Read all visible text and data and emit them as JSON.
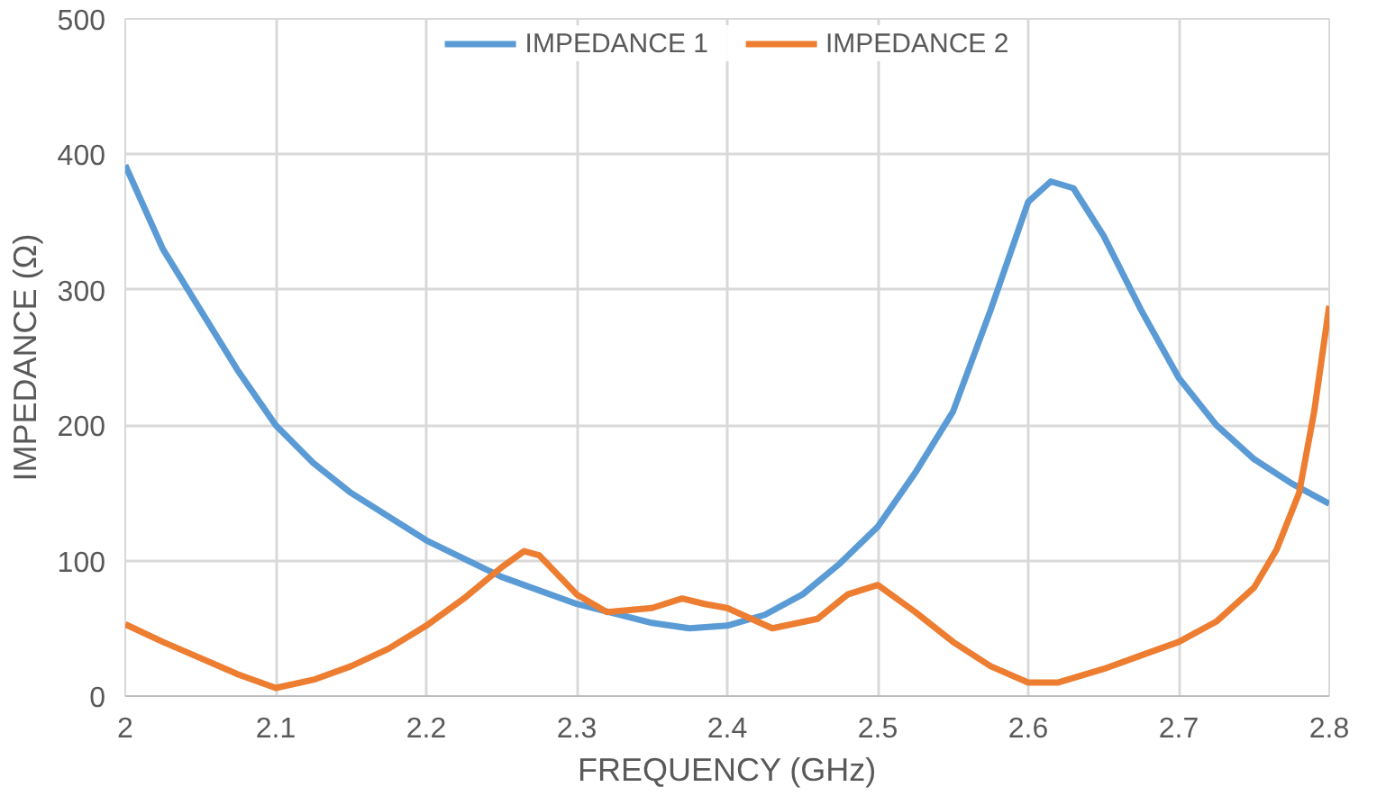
{
  "chart_data": {
    "type": "line",
    "xlabel": "FREQUENCY (GHz)",
    "ylabel": "IMPEDANCE (Ω)",
    "xlim": [
      2,
      2.8
    ],
    "ylim": [
      0,
      500
    ],
    "xticks": [
      2,
      2.1,
      2.2,
      2.3,
      2.4,
      2.5,
      2.6,
      2.7,
      2.8
    ],
    "yticks": [
      0,
      100,
      200,
      300,
      400,
      500
    ],
    "grid": true,
    "legend": "top",
    "marker": "none",
    "line_style": "solid",
    "series": [
      {
        "name": "IMPEDANCE 1",
        "color": "#5b9bd5",
        "x": [
          2.0,
          2.025,
          2.05,
          2.075,
          2.1,
          2.125,
          2.15,
          2.2,
          2.25,
          2.3,
          2.35,
          2.375,
          2.4,
          2.425,
          2.45,
          2.475,
          2.5,
          2.525,
          2.55,
          2.575,
          2.6,
          2.615,
          2.63,
          2.65,
          2.675,
          2.7,
          2.725,
          2.75,
          2.775,
          2.8
        ],
        "values": [
          392,
          330,
          285,
          240,
          200,
          172,
          150,
          115,
          88,
          68,
          54,
          50,
          52,
          60,
          75,
          98,
          125,
          165,
          210,
          285,
          365,
          380,
          375,
          340,
          285,
          235,
          200,
          175,
          157,
          142
        ]
      },
      {
        "name": "IMPEDANCE 2",
        "color": "#ed7d31",
        "x": [
          2.0,
          2.025,
          2.05,
          2.075,
          2.1,
          2.125,
          2.15,
          2.175,
          2.2,
          2.225,
          2.25,
          2.265,
          2.275,
          2.3,
          2.32,
          2.35,
          2.37,
          2.385,
          2.4,
          2.43,
          2.46,
          2.48,
          2.5,
          2.525,
          2.55,
          2.575,
          2.6,
          2.62,
          2.65,
          2.675,
          2.7,
          2.725,
          2.75,
          2.765,
          2.78,
          2.79,
          2.8
        ],
        "values": [
          53,
          40,
          28,
          16,
          6,
          12,
          22,
          35,
          52,
          72,
          95,
          107,
          104,
          75,
          62,
          65,
          72,
          68,
          65,
          50,
          57,
          75,
          82,
          62,
          40,
          22,
          10,
          10,
          20,
          30,
          40,
          55,
          80,
          108,
          150,
          210,
          288
        ]
      }
    ]
  }
}
